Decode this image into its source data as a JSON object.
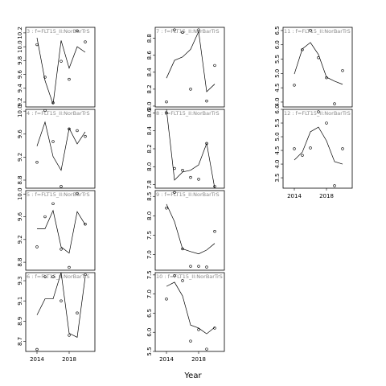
{
  "xlabel": "Year",
  "chart_data": [
    {
      "type": "line",
      "title": "3 : f=FLT15_II:NorBarTrS",
      "x": [
        2014,
        2015,
        2016,
        2017,
        2018,
        2019,
        2020
      ],
      "xlim": [
        2012.6,
        2021.2
      ],
      "ylim": [
        9.13,
        10.28
      ],
      "yticks": [
        9.2,
        9.4,
        9.6,
        9.8,
        {
          "value": 10,
          "label": "10.0"
        },
        10.2
      ],
      "series": [
        {
          "style": "points",
          "color": "#000000",
          "values": [
            10.03,
            9.56,
            9.19,
            9.79,
            9.53,
            10.23,
            10.07
          ]
        },
        {
          "style": "line",
          "color": "#000000",
          "values": [
            10.13,
            9.51,
            9.17,
            10.09,
            9.69,
            10.0,
            9.92
          ]
        }
      ]
    },
    {
      "type": "line",
      "title": "4 : f=FLT15_II:NorBarTrS",
      "x": [
        2014,
        2015,
        2016,
        2017,
        2018,
        2019,
        2020
      ],
      "xlim": [
        2012.6,
        2021.2
      ],
      "ylim": [
        8.66,
        10.03
      ],
      "yticks": [
        8.8,
        9.2,
        9.6,
        {
          "value": 10,
          "label": "10.0"
        }
      ],
      "series": [
        {
          "style": "points",
          "color": "#000000",
          "values": [
            9.11,
            10.01,
            9.47,
            8.69,
            9.69,
            9.66,
            9.56
          ]
        },
        {
          "style": "line",
          "color": "#000000",
          "values": [
            9.39,
            9.81,
            9.21,
            8.97,
            9.7,
            9.43,
            9.64
          ]
        }
      ]
    },
    {
      "type": "line",
      "title": "5 : f=FLT15_II:NorBarTrS",
      "x": [
        2014,
        2015,
        2016,
        2017,
        2018,
        2019,
        2020
      ],
      "xlim": [
        2012.6,
        2021.2
      ],
      "ylim": [
        8.66,
        10.06
      ],
      "yticks": [
        8.8,
        9.2,
        9.6,
        {
          "value": 10,
          "label": "10.0"
        }
      ],
      "series": [
        {
          "style": "points",
          "color": "#000000",
          "values": [
            9.07,
            9.6,
            9.83,
            9.03,
            8.71,
            10.01,
            9.47
          ]
        },
        {
          "style": "line",
          "color": "#000000",
          "values": [
            9.39,
            9.39,
            9.71,
            9.07,
            8.96,
            9.69,
            9.46
          ]
        }
      ]
    },
    {
      "type": "line",
      "title": "6 : f=FLT15_II:NorBarTrS",
      "x": [
        2014,
        2015,
        2016,
        2017,
        2018,
        2019,
        2020
      ],
      "xlim": [
        2012.6,
        2021.2
      ],
      "ylim": [
        8.6,
        9.38
      ],
      "xticks": [
        2014,
        2018
      ],
      "yticks": [
        8.7,
        8.9,
        9.1,
        9.3
      ],
      "series": [
        {
          "style": "points",
          "color": "#000000",
          "values": [
            8.62,
            9.34,
            9.34,
            9.1,
            8.76,
            8.98,
            9.36
          ]
        },
        {
          "style": "line",
          "color": "#000000",
          "values": [
            8.96,
            9.12,
            9.12,
            9.38,
            8.78,
            8.74,
            9.34
          ]
        }
      ]
    },
    {
      "type": "line",
      "title": "7 : f=FLT15_II:NorBarTrS",
      "x": [
        2014,
        2015,
        2016,
        2017,
        2018,
        2019,
        2020
      ],
      "xlim": [
        2012.6,
        2021.2
      ],
      "ylim": [
        7.99,
        8.93
      ],
      "yticks": [
        {
          "value": 8,
          "label": "8.0"
        },
        8.2,
        8.4,
        8.6,
        8.8
      ],
      "series": [
        {
          "style": "points",
          "color": "#000000",
          "values": [
            8.05,
            8.9,
            8.87,
            8.2,
            8.9,
            8.06,
            8.48
          ]
        },
        {
          "style": "line",
          "color": "#000000",
          "values": [
            8.33,
            8.54,
            8.58,
            8.67,
            8.88,
            8.17,
            8.26
          ]
        }
      ]
    },
    {
      "type": "line",
      "title": "8 : f=FLT15_II:NorBarTrS",
      "x": [
        2014,
        2015,
        2016,
        2017,
        2018,
        2019,
        2020
      ],
      "xlim": [
        2012.6,
        2021.2
      ],
      "ylim": [
        7.76,
        8.64
      ],
      "yticks": [
        7.8,
        {
          "value": 8,
          "label": "8.0"
        },
        8.2,
        8.4,
        8.6
      ],
      "series": [
        {
          "style": "points",
          "color": "#000000",
          "values": [
            8.6,
            7.98,
            7.96,
            7.88,
            7.86,
            8.26,
            7.78
          ]
        },
        {
          "style": "line",
          "color": "#000000",
          "values": [
            8.64,
            7.85,
            7.94,
            7.96,
            8.02,
            8.26,
            7.76
          ]
        }
      ]
    },
    {
      "type": "line",
      "title": "9 : f=FLT15_II:NorBarTrS",
      "x": [
        2014,
        2015,
        2016,
        2017,
        2018,
        2019,
        2020
      ],
      "xlim": [
        2012.6,
        2021.2
      ],
      "ylim": [
        6.6,
        8.65
      ],
      "yticks": [
        {
          "value": 7,
          "label": "7.0"
        },
        7.5,
        {
          "value": 8,
          "label": "8.0"
        },
        8.5
      ],
      "series": [
        {
          "style": "points",
          "color": "#000000",
          "values": [
            8.2,
            8.6,
            7.15,
            6.7,
            6.7,
            6.68,
            7.6
          ]
        },
        {
          "style": "line",
          "color": "#000000",
          "values": [
            8.3,
            7.85,
            7.15,
            7.08,
            7.02,
            7.12,
            7.29
          ]
        }
      ]
    },
    {
      "type": "line",
      "title": "10 : f=FLT15_II:NorBarTrS",
      "x": [
        2014,
        2015,
        2016,
        2017,
        2018,
        2019,
        2020
      ],
      "xlim": [
        2012.6,
        2021.2
      ],
      "ylim": [
        5.5,
        7.56
      ],
      "xticks": [
        2014,
        2018
      ],
      "yticks": [
        5.5,
        {
          "value": 6,
          "label": "6.0"
        },
        6.5,
        {
          "value": 7,
          "label": "7.0"
        },
        7.5
      ],
      "series": [
        {
          "style": "points",
          "color": "#000000",
          "values": [
            6.87,
            7.48,
            7.35,
            5.77,
            6.07,
            5.56,
            6.11
          ]
        },
        {
          "style": "line",
          "color": "#000000",
          "values": [
            7.2,
            7.31,
            6.95,
            6.19,
            6.11,
            5.96,
            6.13
          ]
        }
      ]
    },
    {
      "type": "line",
      "title": "11 : f=FLT15_II:NorBarTrS",
      "x": [
        2014,
        2015,
        2016,
        2017,
        2018,
        2019,
        2020
      ],
      "xlim": [
        2012.6,
        2021.2
      ],
      "ylim": [
        3.83,
        6.61
      ],
      "yticks": [
        {
          "value": 4,
          "label": "4.0"
        },
        4.5,
        {
          "value": 5,
          "label": "5.0"
        },
        5.5,
        {
          "value": 6,
          "label": "6.0"
        },
        6.5
      ],
      "series": [
        {
          "style": "points",
          "color": "#000000",
          "values": [
            4.59,
            5.83,
            6.5,
            5.55,
            4.85,
            3.94,
            5.1
          ]
        },
        {
          "style": "line",
          "color": "#000000",
          "values": [
            4.98,
            5.86,
            6.08,
            5.66,
            4.87,
            4.73,
            4.62
          ]
        }
      ]
    },
    {
      "type": "line",
      "title": "12 : f=FLT15_II:NorBarTrS",
      "x": [
        2014,
        2015,
        2016,
        2017,
        2018,
        2019,
        2020
      ],
      "xlim": [
        2012.6,
        2021.2
      ],
      "ylim": [
        3.12,
        6.0
      ],
      "xticks": [
        2014,
        2018
      ],
      "yticks": [
        3.5,
        {
          "value": 4,
          "label": "4.0"
        },
        4.5,
        {
          "value": 5,
          "label": "5.0"
        },
        5.5,
        {
          "value": 6,
          "label": "6.0"
        }
      ],
      "series": [
        {
          "style": "points",
          "color": "#000000",
          "values": [
            4.56,
            4.32,
            4.59,
            5.91,
            5.5,
            3.21,
            4.56
          ]
        },
        {
          "style": "line",
          "color": "#000000",
          "values": [
            4.15,
            4.44,
            5.18,
            5.35,
            4.85,
            4.09,
            4.0
          ]
        }
      ]
    }
  ]
}
